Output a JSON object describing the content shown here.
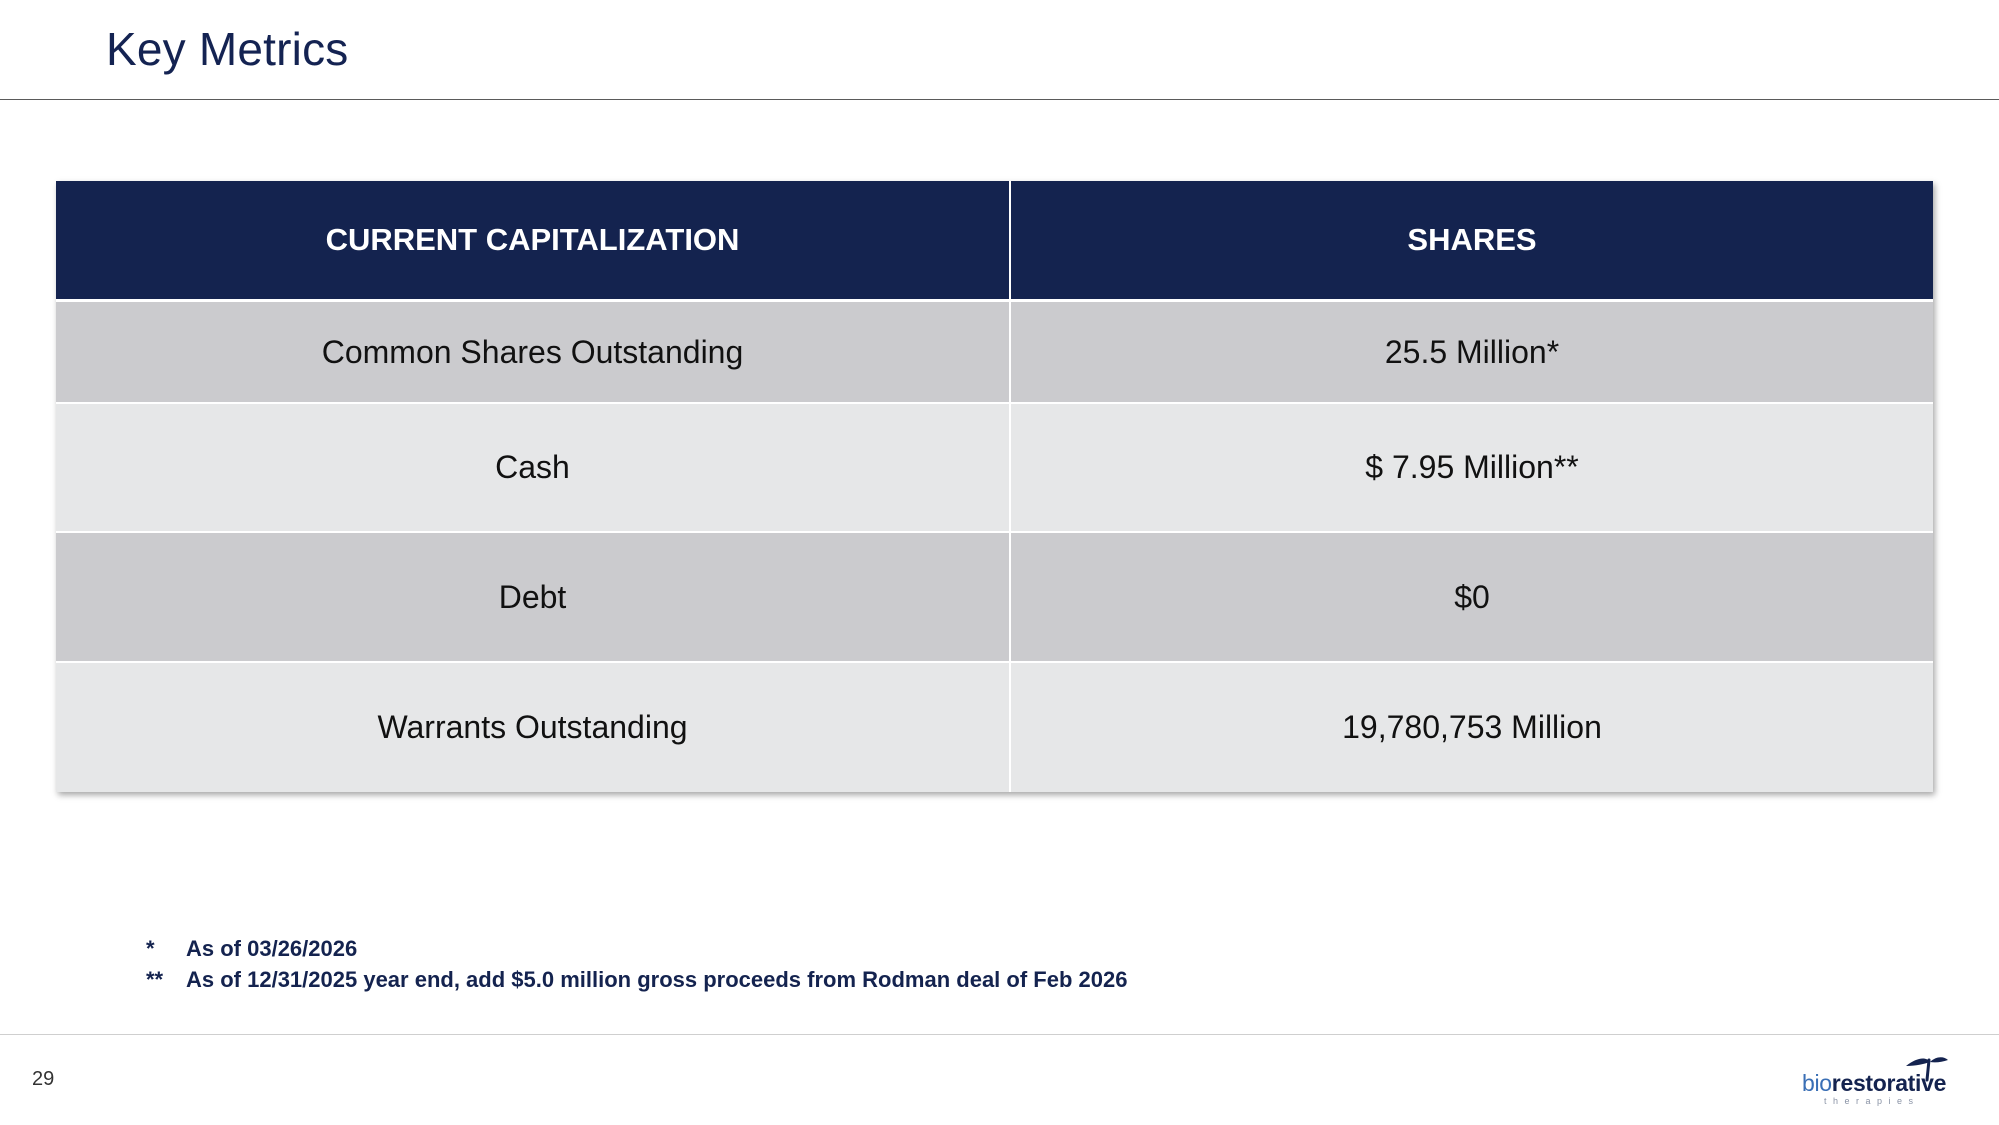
{
  "slide": {
    "title": "Key Metrics",
    "page_number": "29"
  },
  "table": {
    "headers": [
      "CURRENT CAPITALIZATION",
      "SHARES"
    ],
    "rows": [
      {
        "label": "Common Shares Outstanding",
        "value": "25.5 Million*"
      },
      {
        "label": "Cash",
        "value": "$ 7.95 Million**"
      },
      {
        "label": "Debt",
        "value": "$0"
      },
      {
        "label": "Warrants Outstanding",
        "value": "19,780,753 Million"
      }
    ]
  },
  "footnotes": [
    {
      "mark": "*",
      "text": "As of 03/26/2026"
    },
    {
      "mark": "**",
      "text": "As of 12/31/2025 year end, add $5.0 million gross proceeds from Rodman deal of Feb 2026"
    }
  ],
  "logo": {
    "prefix": "bio",
    "main": "restorative",
    "tagline": "therapies"
  },
  "colors": {
    "navy": "#14234f",
    "row_dark": "#cbcbce",
    "row_light": "#e6e7e8"
  }
}
